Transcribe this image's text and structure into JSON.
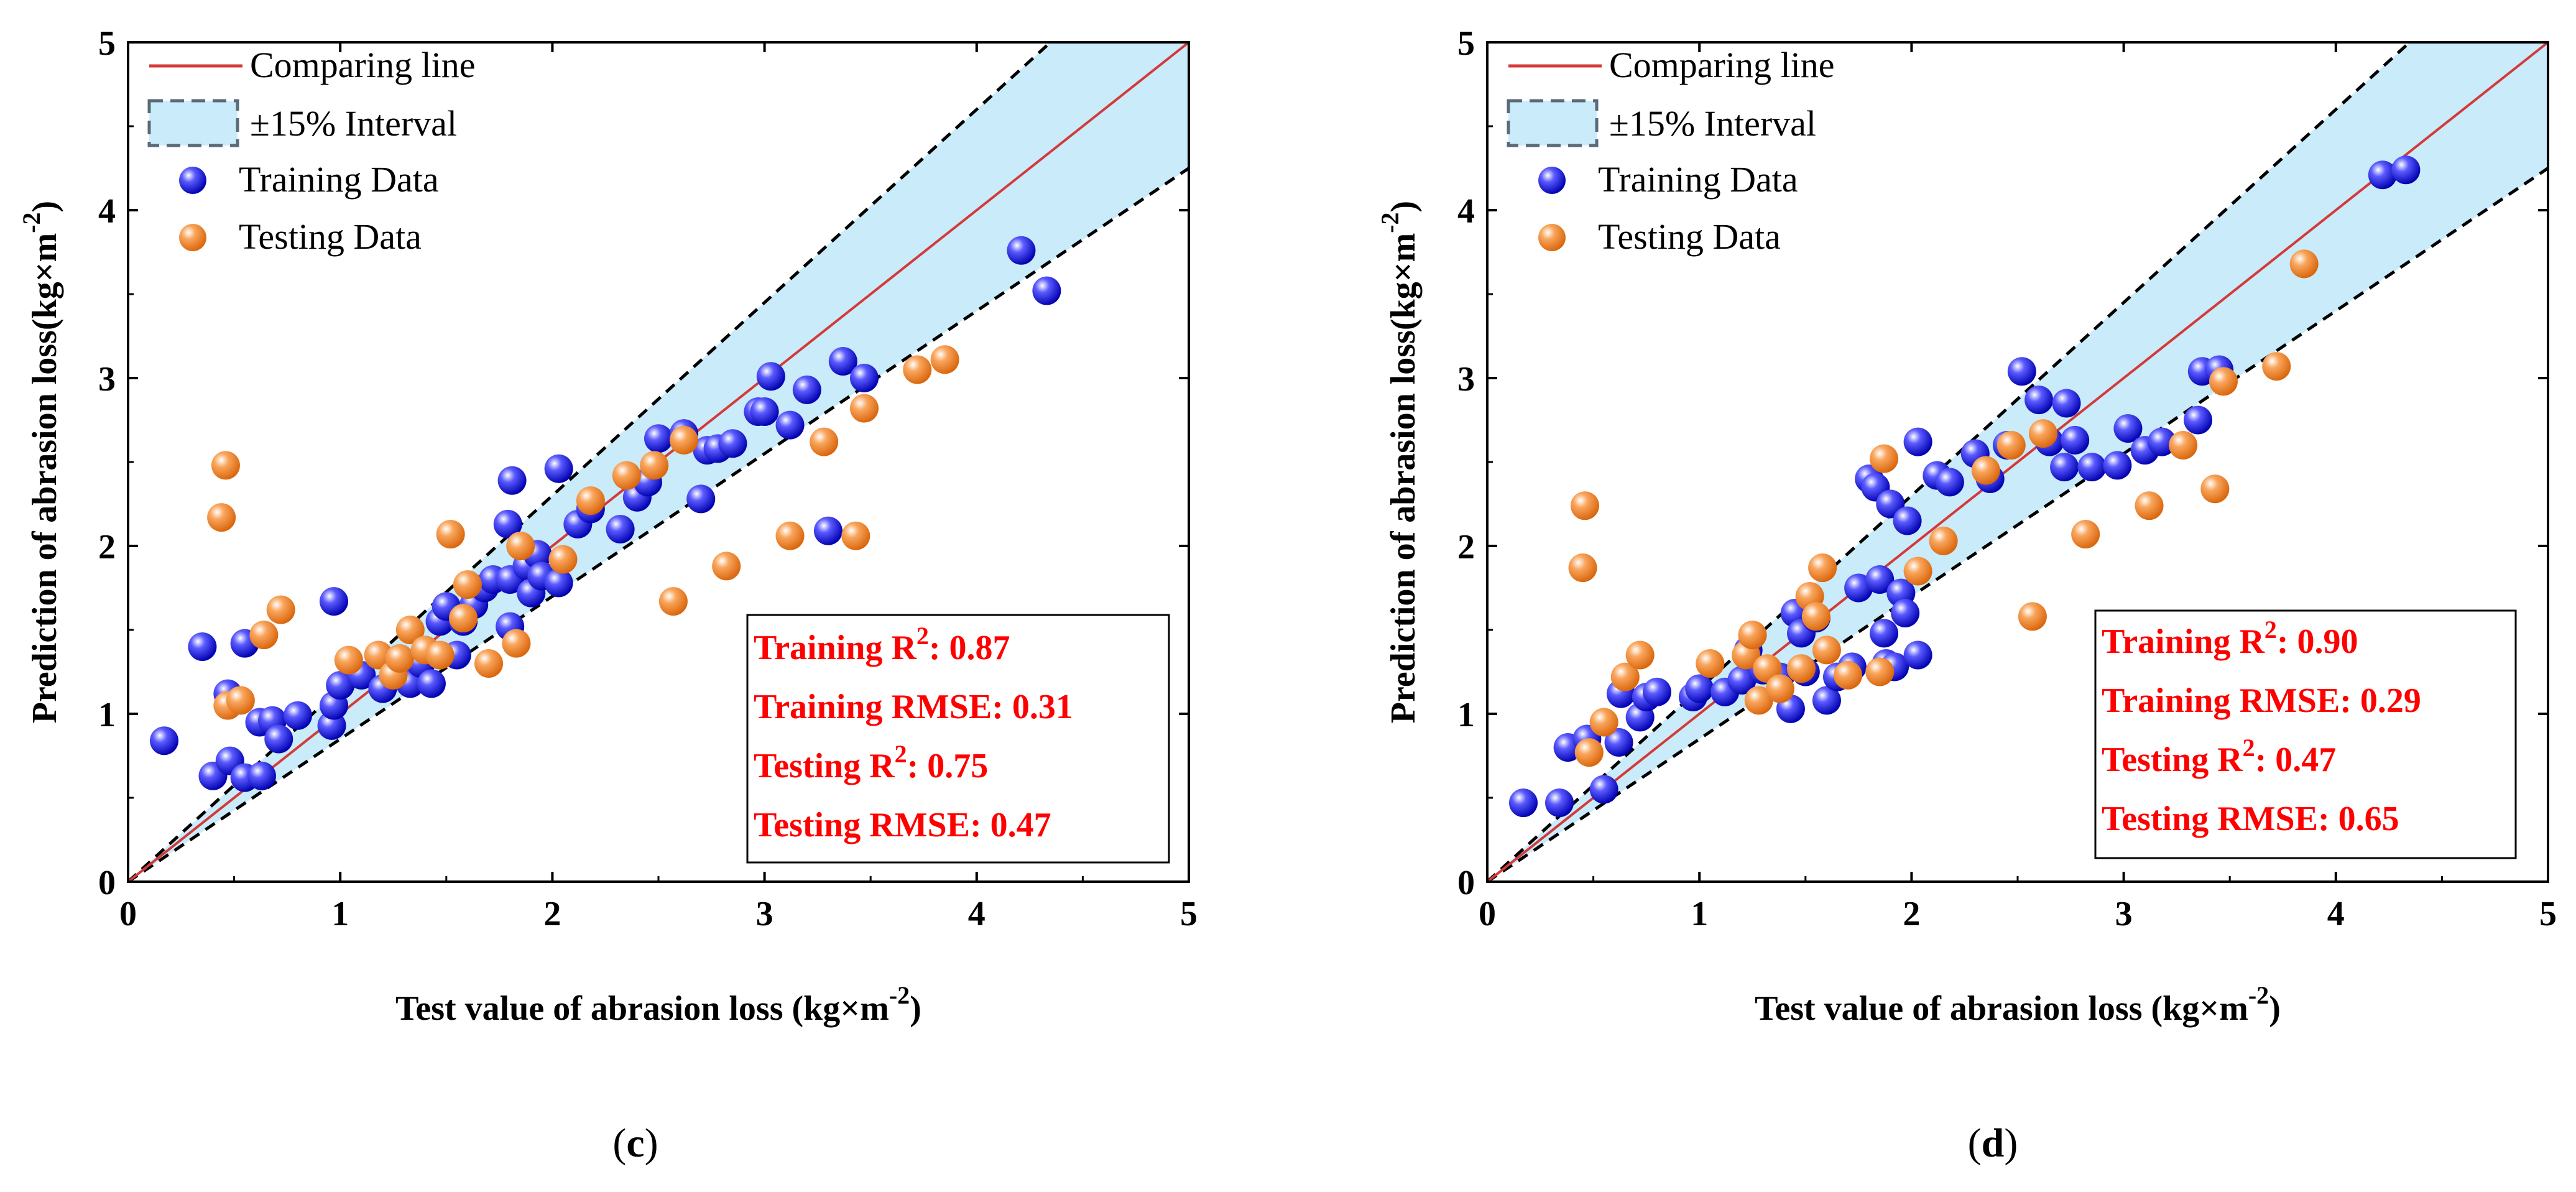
{
  "colors": {
    "comparing_line": "#d43a3a",
    "interval_fill": "#c9ebfa",
    "interval_border": "#000000",
    "training_marker": "#1515d6",
    "testing_marker": "#f28a2e",
    "stats_text": "#ff0000"
  },
  "chart_data": [
    {
      "panel": "c",
      "type": "scatter",
      "xlabel": "Test value of abrasion loss (kg×m",
      "xlabel_sup": "-2",
      "xlabel_close": ")",
      "ylabel": "Prediction of abrasion loss(kg×m",
      "ylabel_sup": "-2",
      "ylabel_close": ")",
      "xlim": [
        0,
        5
      ],
      "ylim": [
        0,
        5
      ],
      "xticks": [
        "0",
        "1",
        "2",
        "3",
        "4",
        "5"
      ],
      "yticks": [
        "0",
        "1",
        "2",
        "3",
        "4",
        "5"
      ],
      "legend": {
        "comparing_line": "Comparing line",
        "interval": "±15% Interval",
        "training": "Training Data",
        "testing": "Testing Data",
        "position": "top-left"
      },
      "stats": [
        {
          "label": "Training R",
          "sup": "2",
          "value": ": 0.87"
        },
        {
          "label": "Training RMSE",
          "sup": "",
          "value": ": 0.31"
        },
        {
          "label": "Testing R",
          "sup": "2",
          "value": ": 0.75"
        },
        {
          "label": "Testing RMSE",
          "sup": "",
          "value": ": 0.47"
        }
      ],
      "panel_label": {
        "open": "(",
        "letter": "c",
        "close": ")"
      },
      "training": [
        [
          0.17,
          0.84
        ],
        [
          0.35,
          1.4
        ],
        [
          0.4,
          0.63
        ],
        [
          0.47,
          1.12
        ],
        [
          0.48,
          0.72
        ],
        [
          0.55,
          0.62
        ],
        [
          0.55,
          1.42
        ],
        [
          0.62,
          0.95
        ],
        [
          0.63,
          0.63
        ],
        [
          0.68,
          0.96
        ],
        [
          0.71,
          0.85
        ],
        [
          0.8,
          0.99
        ],
        [
          0.96,
          0.93
        ],
        [
          0.97,
          1.05
        ],
        [
          0.97,
          1.67
        ],
        [
          1.0,
          1.17
        ],
        [
          1.1,
          1.23
        ],
        [
          1.2,
          1.15
        ],
        [
          1.28,
          1.25
        ],
        [
          1.33,
          1.18
        ],
        [
          1.38,
          1.3
        ],
        [
          1.43,
          1.18
        ],
        [
          1.47,
          1.55
        ],
        [
          1.5,
          1.64
        ],
        [
          1.55,
          1.35
        ],
        [
          1.58,
          1.55
        ],
        [
          1.63,
          1.65
        ],
        [
          1.68,
          1.75
        ],
        [
          1.72,
          1.8
        ],
        [
          1.79,
          2.13
        ],
        [
          1.8,
          1.52
        ],
        [
          1.8,
          1.8
        ],
        [
          1.81,
          2.39
        ],
        [
          1.88,
          1.88
        ],
        [
          1.9,
          1.72
        ],
        [
          1.93,
          1.95
        ],
        [
          1.95,
          1.82
        ],
        [
          2.03,
          1.78
        ],
        [
          2.03,
          2.46
        ],
        [
          2.12,
          2.13
        ],
        [
          2.18,
          2.22
        ],
        [
          2.32,
          2.1
        ],
        [
          2.4,
          2.29
        ],
        [
          2.45,
          2.38
        ],
        [
          2.5,
          2.64
        ],
        [
          2.62,
          2.67
        ],
        [
          2.7,
          2.28
        ],
        [
          2.73,
          2.57
        ],
        [
          2.78,
          2.58
        ],
        [
          2.85,
          2.61
        ],
        [
          2.97,
          2.8
        ],
        [
          3.0,
          2.8
        ],
        [
          3.03,
          3.01
        ],
        [
          3.12,
          2.72
        ],
        [
          3.2,
          2.93
        ],
        [
          3.3,
          2.09
        ],
        [
          3.37,
          3.1
        ],
        [
          3.47,
          3.0
        ],
        [
          4.21,
          3.76
        ],
        [
          4.33,
          3.52
        ]
      ],
      "testing": [
        [
          0.44,
          2.17
        ],
        [
          0.46,
          2.48
        ],
        [
          0.47,
          1.05
        ],
        [
          0.53,
          1.08
        ],
        [
          0.64,
          1.47
        ],
        [
          0.72,
          1.62
        ],
        [
          1.04,
          1.32
        ],
        [
          1.18,
          1.35
        ],
        [
          1.25,
          1.23
        ],
        [
          1.28,
          1.33
        ],
        [
          1.33,
          1.5
        ],
        [
          1.4,
          1.38
        ],
        [
          1.47,
          1.35
        ],
        [
          1.52,
          2.07
        ],
        [
          1.58,
          1.57
        ],
        [
          1.6,
          1.77
        ],
        [
          1.7,
          1.3
        ],
        [
          1.83,
          1.42
        ],
        [
          1.85,
          2.0
        ],
        [
          2.05,
          1.92
        ],
        [
          2.18,
          2.27
        ],
        [
          2.35,
          2.42
        ],
        [
          2.48,
          2.48
        ],
        [
          2.57,
          1.67
        ],
        [
          2.62,
          2.63
        ],
        [
          2.82,
          1.88
        ],
        [
          3.12,
          2.06
        ],
        [
          3.28,
          2.62
        ],
        [
          3.43,
          2.06
        ],
        [
          3.47,
          2.82
        ],
        [
          3.72,
          3.05
        ],
        [
          3.85,
          3.11
        ]
      ]
    },
    {
      "panel": "d",
      "type": "scatter",
      "xlabel": "Test value of abrasion loss (kg×m",
      "xlabel_sup": "-2",
      "xlabel_close": ")",
      "ylabel": "Prediction of abrasion loss(kg×m",
      "ylabel_sup": "-2",
      "ylabel_close": ")",
      "xlim": [
        0,
        5
      ],
      "ylim": [
        0,
        5
      ],
      "xticks": [
        "0",
        "1",
        "2",
        "3",
        "4",
        "5"
      ],
      "yticks": [
        "0",
        "1",
        "2",
        "3",
        "4",
        "5"
      ],
      "legend": {
        "comparing_line": "Comparing line",
        "interval": "±15% Interval",
        "training": "Training Data",
        "testing": "Testing Data",
        "position": "top-left"
      },
      "stats": [
        {
          "label": "Training R",
          "sup": "2",
          "value": ": 0.90"
        },
        {
          "label": "Training RMSE",
          "sup": "",
          "value": ": 0.29"
        },
        {
          "label": "Testing R",
          "sup": "2",
          "value": ": 0.47"
        },
        {
          "label": "Testing RMSE",
          "sup": "",
          "value": ": 0.65"
        }
      ],
      "panel_label": {
        "open": "(",
        "letter": "d",
        "close": ")"
      },
      "training": [
        [
          0.17,
          0.47
        ],
        [
          0.34,
          0.47
        ],
        [
          0.38,
          0.8
        ],
        [
          0.47,
          0.85
        ],
        [
          0.55,
          0.55
        ],
        [
          0.62,
          0.83
        ],
        [
          0.63,
          1.12
        ],
        [
          0.72,
          0.98
        ],
        [
          0.75,
          1.1
        ],
        [
          0.8,
          1.13
        ],
        [
          0.97,
          1.1
        ],
        [
          1.0,
          1.15
        ],
        [
          1.12,
          1.13
        ],
        [
          1.2,
          1.2
        ],
        [
          1.23,
          1.38
        ],
        [
          1.3,
          1.26
        ],
        [
          1.38,
          1.22
        ],
        [
          1.43,
          1.03
        ],
        [
          1.45,
          1.6
        ],
        [
          1.48,
          1.48
        ],
        [
          1.5,
          1.25
        ],
        [
          1.55,
          1.57
        ],
        [
          1.6,
          1.08
        ],
        [
          1.65,
          1.22
        ],
        [
          1.72,
          1.28
        ],
        [
          1.75,
          1.75
        ],
        [
          1.8,
          2.4
        ],
        [
          1.83,
          2.35
        ],
        [
          1.85,
          1.8
        ],
        [
          1.87,
          1.48
        ],
        [
          1.88,
          1.3
        ],
        [
          1.9,
          2.25
        ],
        [
          1.92,
          1.28
        ],
        [
          1.95,
          1.72
        ],
        [
          1.97,
          1.6
        ],
        [
          1.98,
          2.15
        ],
        [
          2.03,
          1.35
        ],
        [
          2.03,
          2.62
        ],
        [
          2.12,
          2.42
        ],
        [
          2.18,
          2.38
        ],
        [
          2.3,
          2.55
        ],
        [
          2.37,
          2.4
        ],
        [
          2.45,
          2.6
        ],
        [
          2.52,
          3.04
        ],
        [
          2.6,
          2.87
        ],
        [
          2.65,
          2.62
        ],
        [
          2.72,
          2.47
        ],
        [
          2.73,
          2.85
        ],
        [
          2.77,
          2.63
        ],
        [
          2.85,
          2.47
        ],
        [
          2.97,
          2.48
        ],
        [
          3.02,
          2.7
        ],
        [
          3.1,
          2.57
        ],
        [
          3.18,
          2.62
        ],
        [
          3.35,
          2.75
        ],
        [
          3.37,
          3.04
        ],
        [
          3.45,
          3.05
        ],
        [
          4.22,
          4.21
        ],
        [
          4.33,
          4.24
        ]
      ],
      "testing": [
        [
          0.45,
          1.87
        ],
        [
          0.46,
          2.24
        ],
        [
          0.48,
          0.77
        ],
        [
          0.55,
          0.95
        ],
        [
          0.65,
          1.22
        ],
        [
          0.72,
          1.35
        ],
        [
          1.05,
          1.3
        ],
        [
          1.22,
          1.35
        ],
        [
          1.25,
          1.47
        ],
        [
          1.28,
          1.08
        ],
        [
          1.32,
          1.27
        ],
        [
          1.38,
          1.15
        ],
        [
          1.48,
          1.27
        ],
        [
          1.52,
          1.7
        ],
        [
          1.55,
          1.58
        ],
        [
          1.58,
          1.87
        ],
        [
          1.6,
          1.38
        ],
        [
          1.7,
          1.23
        ],
        [
          1.85,
          1.25
        ],
        [
          1.87,
          2.52
        ],
        [
          2.03,
          1.85
        ],
        [
          2.15,
          2.03
        ],
        [
          2.35,
          2.45
        ],
        [
          2.47,
          2.6
        ],
        [
          2.57,
          1.58
        ],
        [
          2.62,
          2.67
        ],
        [
          2.82,
          2.07
        ],
        [
          3.12,
          2.24
        ],
        [
          3.28,
          2.6
        ],
        [
          3.43,
          2.34
        ],
        [
          3.47,
          2.98
        ],
        [
          3.72,
          3.07
        ],
        [
          3.85,
          3.68
        ]
      ]
    }
  ]
}
